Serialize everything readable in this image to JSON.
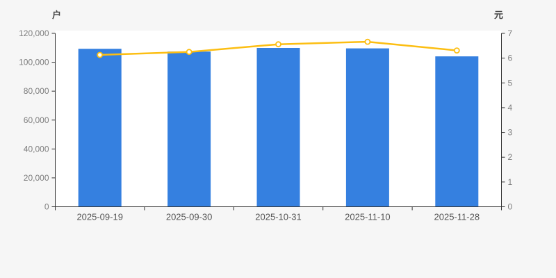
{
  "chart_data": {
    "type": "bar",
    "subtype": "bar-and-line-dual-axis",
    "categories": [
      "2025-09-19",
      "2025-09-30",
      "2025-10-31",
      "2025-11-10",
      "2025-11-28"
    ],
    "series": [
      {
        "id": "bar-series",
        "type": "bar",
        "axis": "left",
        "color": "#3580e0",
        "values": [
          109300,
          107400,
          109900,
          109600,
          104100
        ]
      },
      {
        "id": "line-series",
        "type": "line",
        "axis": "right",
        "color": "#fcbe12",
        "marker": "hollow-circle",
        "marker_fill": "#ffffff",
        "values": [
          6.13,
          6.25,
          6.56,
          6.66,
          6.31
        ]
      }
    ],
    "left_axis": {
      "unit_label": "户",
      "min": 0,
      "max": 120000,
      "step": 20000,
      "tick_labels": [
        "0",
        "20,000",
        "40,000",
        "60,000",
        "80,000",
        "100,000",
        "120,000"
      ]
    },
    "right_axis": {
      "unit_label": "元",
      "min": 0,
      "max": 7,
      "step": 1,
      "tick_labels": [
        "0",
        "1",
        "2",
        "3",
        "4",
        "5",
        "6",
        "7"
      ]
    },
    "grid": false,
    "legend": "none",
    "plot_background": "#ffffff",
    "page_background": "#f6f6f6",
    "axis_line_color": "#333333",
    "y_tick_label_color": "#7d7d7d",
    "x_tick_label_color": "#555555",
    "unit_label_color": "#444444"
  }
}
